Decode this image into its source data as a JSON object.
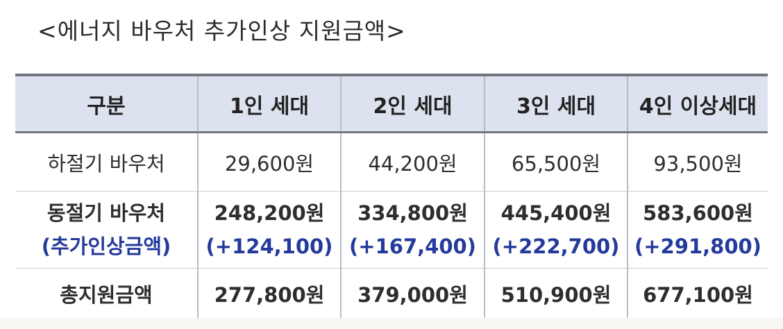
{
  "title": "<에너지 바우처 추가인상 지원금액>",
  "table": {
    "headers": [
      "구분",
      "1인 세대",
      "2인 세대",
      "3인 세대",
      "4인 이상세대"
    ],
    "summer": {
      "label": "하절기 바우처",
      "values": [
        "29,600원",
        "44,200원",
        "65,500원",
        "93,500원"
      ]
    },
    "winter": {
      "label": "동절기 바우처",
      "sublabel": "(추가인상금액)",
      "values": [
        "248,200원",
        "334,800원",
        "445,400원",
        "583,600원"
      ],
      "increases": [
        "(+124,100)",
        "(+167,400)",
        "(+222,700)",
        "(+291,800)"
      ]
    },
    "total": {
      "label": "총지원금액",
      "values": [
        "277,800원",
        "379,000원",
        "510,900원",
        "677,100원"
      ]
    }
  },
  "colors": {
    "header_bg": "#dde3ee",
    "increase_text": "#243a9c",
    "rule": "#6f7681"
  }
}
